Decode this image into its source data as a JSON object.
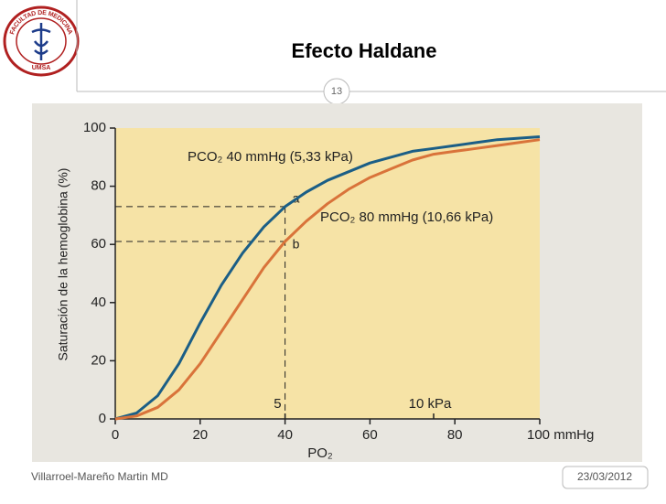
{
  "slide": {
    "title": "Efecto Haldane",
    "page_number": "13",
    "footer": "Villarroel-Mareño Martin MD",
    "date": "23/03/2012",
    "logo": {
      "top_text": "FACULTAD DE MEDICINA",
      "bottom_text": "UMSA"
    }
  },
  "chart_data": {
    "type": "line",
    "x_label": "PO₂",
    "y_label": "Saturación de la hemoglobina (%)",
    "x": [
      0,
      5,
      10,
      15,
      20,
      25,
      30,
      35,
      40,
      45,
      50,
      55,
      60,
      65,
      70,
      75,
      80,
      85,
      90,
      95,
      100
    ],
    "series": [
      {
        "name": "PCO₂ 40 mmHg (5,33 kPa)",
        "color": "#1b5e86",
        "values": [
          0,
          2,
          8,
          19,
          33,
          46,
          57,
          66,
          73,
          78,
          82,
          85,
          88,
          90,
          92,
          93,
          94,
          95,
          96,
          96.5,
          97
        ]
      },
      {
        "name": "PCO₂ 80 mmHg (10,66 kPa)",
        "color": "#d9733a",
        "values": [
          0,
          1,
          4,
          10,
          19,
          30,
          41,
          52,
          61,
          68,
          74,
          79,
          83,
          86,
          89,
          91,
          92,
          93,
          94,
          95,
          96
        ]
      }
    ],
    "xlim": [
      0,
      100
    ],
    "xticks": [
      0,
      20,
      40,
      60,
      80,
      {
        "value": 100,
        "label": "100 mmHg"
      }
    ],
    "ylim": [
      0,
      100
    ],
    "yticks": [
      0,
      20,
      40,
      60,
      80,
      100
    ],
    "kpa_ticks": [
      {
        "value": 40,
        "label": "5"
      },
      {
        "value": 75,
        "label": "10 kPa"
      }
    ],
    "annotations": [
      "a",
      "b"
    ],
    "background": "#f6e3a6"
  }
}
